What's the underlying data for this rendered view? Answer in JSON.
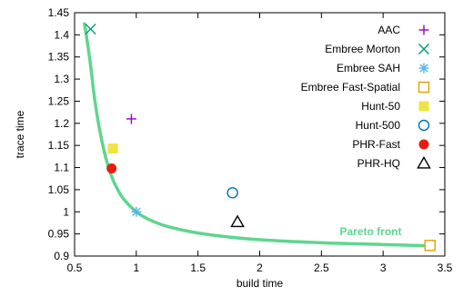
{
  "chart_data": {
    "type": "scatter",
    "xlabel": "build time",
    "ylabel": "trace time",
    "xlim": [
      0.5,
      3.5
    ],
    "ylim": [
      0.9,
      1.45
    ],
    "xticks": [
      "0.5",
      "1",
      "1.5",
      "2",
      "2.5",
      "3",
      "3.5"
    ],
    "yticks": [
      "0.9",
      "0.95",
      "1",
      "1.05",
      "1.1",
      "1.15",
      "1.2",
      "1.25",
      "1.3",
      "1.35",
      "1.4",
      "1.45"
    ],
    "grid": false,
    "legend_position": "top-right",
    "series": [
      {
        "name": "AAC",
        "marker": "plus",
        "color": "#9400d3",
        "x": 0.96,
        "y": 1.21
      },
      {
        "name": "Embree Morton",
        "marker": "cross",
        "color": "#009e73",
        "x": 0.63,
        "y": 1.413
      },
      {
        "name": "Embree SAH",
        "marker": "asterisk",
        "color": "#56b4e9",
        "x": 1.0,
        "y": 1.0
      },
      {
        "name": "Embree Fast-Spatial",
        "marker": "open-square",
        "color": "#e69f00",
        "x": 3.38,
        "y": 0.924
      },
      {
        "name": "Hunt-50",
        "marker": "filled-square",
        "color": "#f0e442",
        "x": 0.81,
        "y": 1.143
      },
      {
        "name": "Hunt-500",
        "marker": "open-circle",
        "color": "#0072b2",
        "x": 1.78,
        "y": 1.043
      },
      {
        "name": "PHR-Fast",
        "marker": "filled-circle",
        "color": "#e51e10",
        "x": 0.8,
        "y": 1.098
      },
      {
        "name": "PHR-HQ",
        "marker": "open-triangle",
        "color": "#000000",
        "x": 1.82,
        "y": 0.977
      }
    ],
    "pareto_front": {
      "label": "Pareto front",
      "color": "#5ed68f",
      "points": [
        [
          0.58,
          1.425
        ],
        [
          0.6,
          1.39
        ],
        [
          0.63,
          1.33
        ],
        [
          0.66,
          1.26
        ],
        [
          0.7,
          1.19
        ],
        [
          0.75,
          1.125
        ],
        [
          0.8,
          1.08
        ],
        [
          0.85,
          1.05
        ],
        [
          0.9,
          1.028
        ],
        [
          1.0,
          1.0
        ],
        [
          1.1,
          0.983
        ],
        [
          1.25,
          0.967
        ],
        [
          1.5,
          0.952
        ],
        [
          1.75,
          0.943
        ],
        [
          2.0,
          0.937
        ],
        [
          2.5,
          0.93
        ],
        [
          3.0,
          0.926
        ],
        [
          3.38,
          0.923
        ]
      ]
    }
  }
}
